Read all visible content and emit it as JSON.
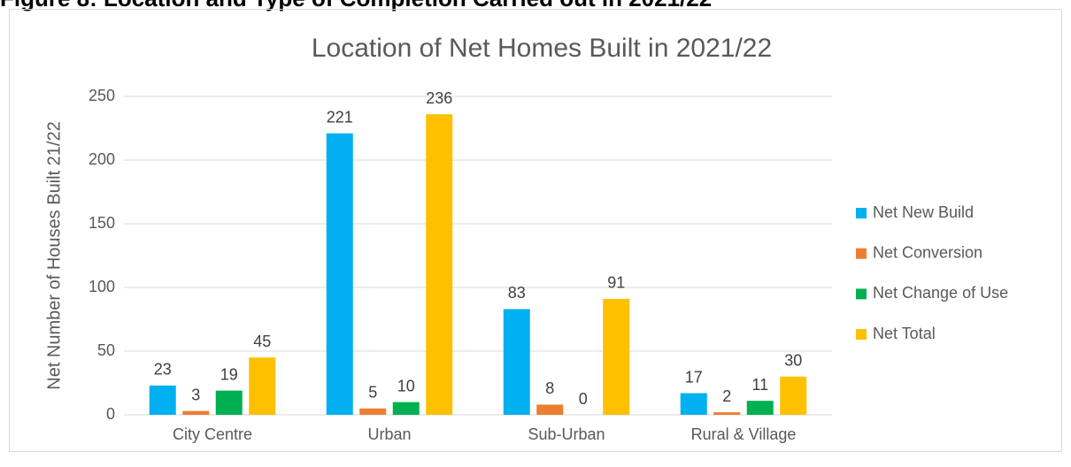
{
  "heading": "Figure 8: Location and Type of Completion Carried out in 2021/22",
  "chart_data": {
    "type": "bar",
    "title": "Location of Net Homes Built in 2021/22",
    "y_label": "Net Number of Houses Built 21/22",
    "categories": [
      "City Centre",
      "Urban",
      "Sub-Urban",
      "Rural & Village"
    ],
    "series": [
      {
        "name": "Net New Build",
        "color": "#00b0f0",
        "values": [
          23,
          221,
          83,
          17
        ]
      },
      {
        "name": "Net Conversion",
        "color": "#ed7d31",
        "values": [
          3,
          5,
          8,
          2
        ]
      },
      {
        "name": "Net Change of Use",
        "color": "#00b050",
        "values": [
          19,
          10,
          0,
          11
        ]
      },
      {
        "name": "Net Total",
        "color": "#ffc000",
        "values": [
          45,
          236,
          91,
          30
        ]
      }
    ],
    "ylim": [
      0,
      250
    ],
    "yticks": [
      0,
      50,
      100,
      150,
      200,
      250
    ],
    "grid": true,
    "legend": "right"
  }
}
